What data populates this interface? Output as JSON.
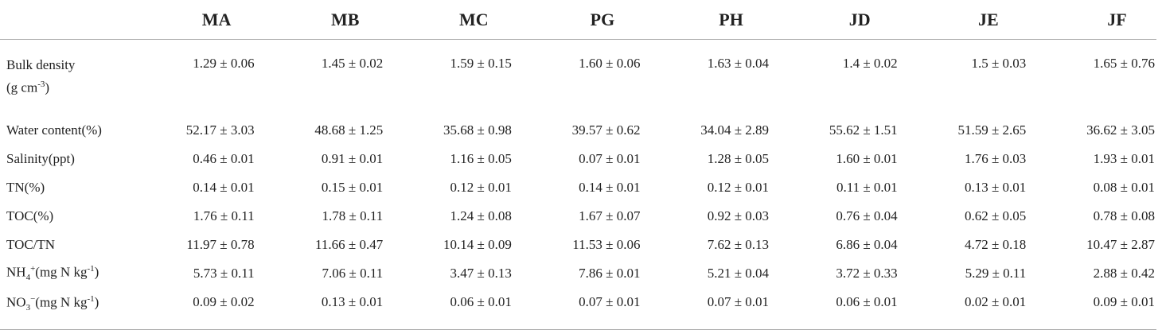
{
  "table": {
    "columns": [
      "MA",
      "MB",
      "MC",
      "PG",
      "PH",
      "JD",
      "JE",
      "JF"
    ],
    "rows": [
      {
        "label": [
          "Bulk density",
          "(g cm",
          "-3",
          ")"
        ],
        "values": [
          "1.29 ± 0.06",
          "1.45 ± 0.02",
          "1.59 ± 0.15",
          "1.60 ± 0.06",
          "1.63 ± 0.04",
          "1.4 ± 0.02",
          "1.5 ± 0.03",
          "1.65 ± 0.76"
        ]
      },
      {
        "label": [
          "Water content(%)"
        ],
        "values": [
          "52.17 ± 3.03",
          "48.68 ± 1.25",
          "35.68 ± 0.98",
          "39.57 ± 0.62",
          "34.04 ± 2.89",
          "55.62 ± 1.51",
          "51.59 ± 2.65",
          "36.62 ± 3.05"
        ]
      },
      {
        "label": [
          "Salinity(ppt)"
        ],
        "values": [
          "0.46 ± 0.01",
          "0.91 ± 0.01",
          "1.16 ± 0.05",
          "0.07 ± 0.01",
          "1.28 ± 0.05",
          "1.60 ± 0.01",
          "1.76 ± 0.03",
          "1.93 ± 0.01"
        ]
      },
      {
        "label": [
          "TN(%)"
        ],
        "values": [
          "0.14 ± 0.01",
          "0.15 ± 0.01",
          "0.12 ± 0.01",
          "0.14 ± 0.01",
          "0.12 ± 0.01",
          "0.11 ± 0.01",
          "0.13 ± 0.01",
          "0.08 ± 0.01"
        ]
      },
      {
        "label": [
          "TOC(%)"
        ],
        "values": [
          "1.76 ± 0.11",
          "1.78 ± 0.11",
          "1.24 ± 0.08",
          "1.67 ± 0.07",
          "0.92 ± 0.03",
          "0.76 ± 0.04",
          "0.62 ± 0.05",
          "0.78 ± 0.08"
        ]
      },
      {
        "label": [
          "TOC/TN"
        ],
        "values": [
          "11.97 ± 0.78",
          "11.66 ± 0.47",
          "10.14 ± 0.09",
          "11.53 ± 0.06",
          "7.62 ± 0.13",
          "6.86 ± 0.04",
          "4.72 ± 0.18",
          "10.47 ± 2.87"
        ]
      },
      {
        "label": [
          "NH",
          "4",
          "+",
          "(mg N kg",
          "-1",
          ")"
        ],
        "values": [
          "5.73 ± 0.11",
          "7.06 ± 0.11",
          "3.47 ± 0.13",
          "7.86 ± 0.01",
          "5.21 ± 0.04",
          "3.72 ± 0.33",
          "5.29 ± 0.11",
          "2.88 ± 0.42"
        ]
      },
      {
        "label": [
          "NO",
          "3",
          "−",
          "(mg N kg",
          "-1",
          ")"
        ],
        "values": [
          "0.09 ± 0.02",
          "0.13 ± 0.01",
          "0.06 ± 0.01",
          "0.07 ± 0.01",
          "0.07 ± 0.01",
          "0.06 ± 0.01",
          "0.02 ± 0.01",
          "0.09 ± 0.01"
        ]
      }
    ]
  }
}
